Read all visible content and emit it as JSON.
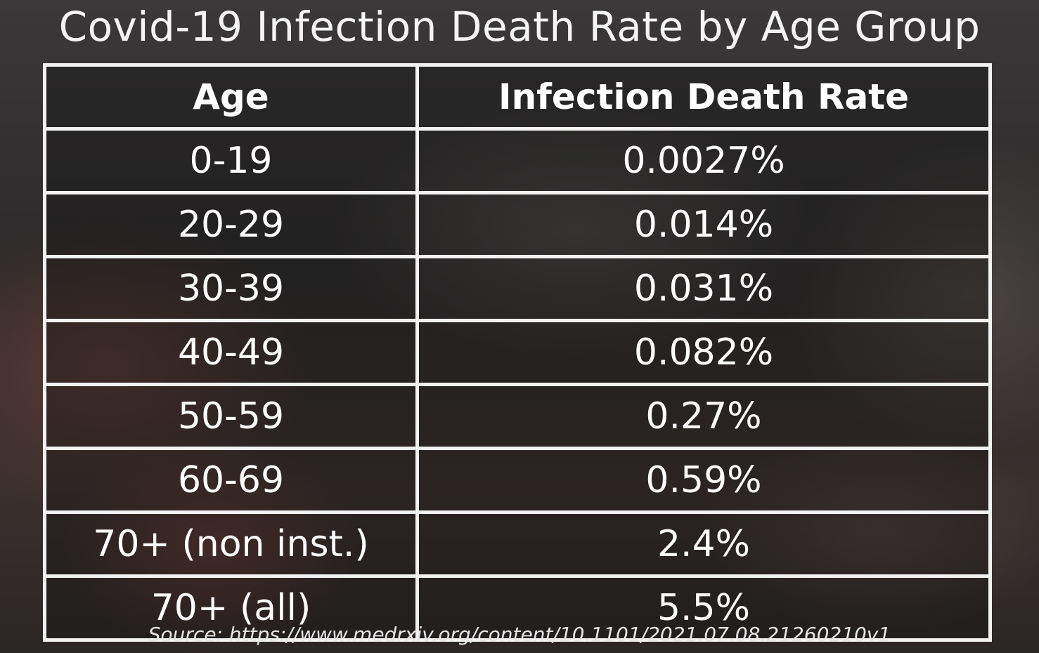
{
  "chart_data": {
    "type": "table",
    "title": "Covid-19 Infection Death Rate by Age Group",
    "columns": [
      "Age",
      "Infection Death Rate"
    ],
    "rows": [
      {
        "age": "0-19",
        "rate": "0.0027%",
        "value": 0.0027
      },
      {
        "age": "20-29",
        "rate": "0.014%",
        "value": 0.014
      },
      {
        "age": "30-39",
        "rate": "0.031%",
        "value": 0.031
      },
      {
        "age": "40-49",
        "rate": "0.082%",
        "value": 0.082
      },
      {
        "age": "50-59",
        "rate": "0.27%",
        "value": 0.27
      },
      {
        "age": "60-69",
        "rate": "0.59%",
        "value": 0.59
      },
      {
        "age": "70+ (non inst.)",
        "rate": "2.4%",
        "value": 2.4
      },
      {
        "age": "70+ (all)",
        "rate": "5.5%",
        "value": 5.5
      }
    ],
    "source": "Source: https://www.medrxiv.org/content/10.1101/2021.07.08.21260210v1"
  }
}
